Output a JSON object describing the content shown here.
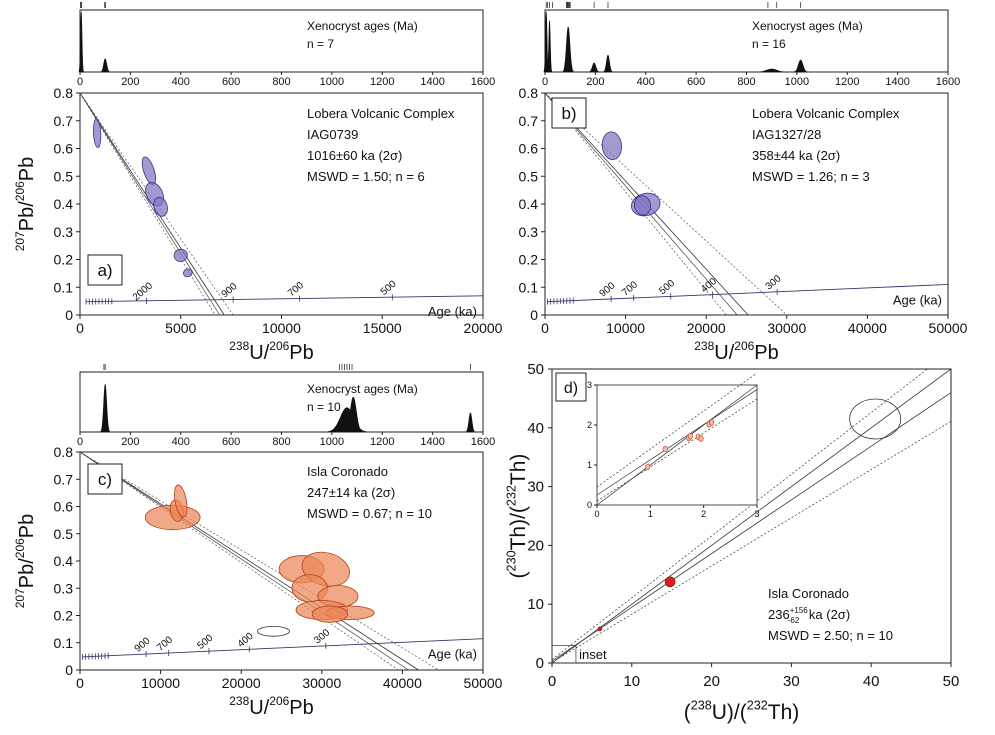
{
  "colors": {
    "purple_fill": "#8272c0",
    "purple_stroke": "#3e2f85",
    "orange_fill": "#ec8658",
    "orange_stroke": "#b5401c",
    "red_dot": "#d81e1e",
    "axis": "#222222",
    "concordia": "#33336e"
  },
  "chart_data": [
    {
      "panel": "a",
      "type": "scatter",
      "kind": "Tera-Wasserburg concordia",
      "label": "a)",
      "title_lines": [
        "Lobera Volcanic Complex",
        "IAG0739",
        "1016±60 ka (2σ)",
        "MSWD = 1.50; n = 6"
      ],
      "xlim": [
        0,
        20000
      ],
      "ylim": [
        0,
        0.8
      ],
      "x_ticks": [
        0,
        5000,
        10000,
        15000,
        20000
      ],
      "y_ticks": [
        0,
        0.1,
        0.2,
        0.3,
        0.4,
        0.5,
        0.6,
        0.7,
        0.8
      ],
      "x_tick_labels": [
        "0",
        "5000",
        "10000",
        "15000",
        "20000"
      ],
      "y_tick_labels": [
        "0",
        "0.1",
        "0.2",
        "0.3",
        "0.4",
        "0.5",
        "0.6",
        "0.7",
        "0.8"
      ],
      "ylabel": {
        "pre": "207",
        "mid": "Pb/",
        "sup": "206",
        "post": "Pb"
      },
      "xlabel": {
        "pre": "238",
        "mid": "U/",
        "sup": "206",
        "post": "Pb"
      },
      "concordia": {
        "label": "Age (ka)",
        "start": [
          300,
          0.048
        ],
        "end": [
          20000,
          0.069
        ],
        "age_labels": [
          "2000",
          "900",
          "700",
          "500"
        ],
        "age_label_x": [
          3300,
          7600,
          10900,
          15500
        ]
      },
      "regression": {
        "from": [
          0,
          0.8
        ],
        "center_x": 7160,
        "env_low_x": 6700,
        "env_high_x": 7600
      },
      "ellipses": [
        {
          "x": 850,
          "y": 0.655,
          "rx": 180,
          "ry": 0.052,
          "rot": 3
        },
        {
          "x": 3420,
          "y": 0.52,
          "rx": 260,
          "ry": 0.052,
          "rot": 18
        },
        {
          "x": 3700,
          "y": 0.435,
          "rx": 400,
          "ry": 0.045,
          "rot": 25
        },
        {
          "x": 4000,
          "y": 0.39,
          "rx": 330,
          "ry": 0.035,
          "rot": 15
        },
        {
          "x": 5000,
          "y": 0.215,
          "rx": 330,
          "ry": 0.022,
          "rot": 15
        },
        {
          "x": 5350,
          "y": 0.152,
          "rx": 220,
          "ry": 0.014,
          "rot": 20
        }
      ],
      "histogram": {
        "text_lines": [
          "Xenocryst ages (Ma)",
          "n = 7"
        ],
        "xlim": [
          0,
          1600
        ],
        "ticks": [
          0,
          200,
          400,
          600,
          800,
          1000,
          1200,
          1400,
          1600
        ],
        "tick_labels": [
          "0",
          "200",
          "400",
          "600",
          "800",
          "1000",
          "1200",
          "1400",
          "1600"
        ],
        "peaks": [
          {
            "center": 5,
            "height": 1.0,
            "width": 3
          },
          {
            "center": 100,
            "height": 0.22,
            "width": 6
          }
        ],
        "rug": [
          2,
          4,
          6,
          98,
          101
        ]
      }
    },
    {
      "panel": "b",
      "type": "scatter",
      "kind": "Tera-Wasserburg concordia",
      "label": "b)",
      "title_lines": [
        "Lobera Volcanic Complex",
        "IAG1327/28",
        "358±44 ka (2σ)",
        "MSWD = 1.26; n = 3"
      ],
      "xlim": [
        0,
        50000
      ],
      "ylim": [
        0,
        0.8
      ],
      "x_ticks": [
        0,
        10000,
        20000,
        30000,
        40000,
        50000
      ],
      "y_ticks": [
        0,
        0.1,
        0.2,
        0.3,
        0.4,
        0.5,
        0.6,
        0.7,
        0.8
      ],
      "x_tick_labels": [
        "0",
        "10000",
        "20000",
        "30000",
        "40000",
        "50000"
      ],
      "y_tick_labels": [
        "0",
        "0.1",
        "0.2",
        "0.3",
        "0.4",
        "0.5",
        "0.6",
        "0.7",
        "0.8"
      ],
      "ylabel": {
        "pre": "",
        "mid": "",
        "sup": "",
        "post": ""
      },
      "xlabel": {
        "pre": "238",
        "mid": "U/",
        "sup": "206",
        "post": "Pb"
      },
      "concordia": {
        "label": "Age (ka)",
        "start": [
          300,
          0.048
        ],
        "end": [
          50000,
          0.11
        ],
        "age_labels": [
          "900",
          "700",
          "500",
          "400",
          "300"
        ],
        "age_label_x": [
          8200,
          11000,
          15600,
          20800,
          28800
        ]
      },
      "regression": {
        "from": [
          0,
          0.8
        ],
        "center_x": 25200,
        "env_low_x": 22500,
        "env_high_x": 30000
      },
      "ellipses": [
        {
          "x": 8300,
          "y": 0.61,
          "rx": 1200,
          "ry": 0.05,
          "rot": 5
        },
        {
          "x": 12500,
          "y": 0.398,
          "rx": 1800,
          "ry": 0.04,
          "rot": 15
        },
        {
          "x": 12100,
          "y": 0.395,
          "rx": 1000,
          "ry": 0.035,
          "rot": 10
        }
      ],
      "histogram": {
        "text_lines": [
          "Xenocryst ages (Ma)",
          "n = 16"
        ],
        "xlim": [
          0,
          1600
        ],
        "ticks": [
          0,
          200,
          400,
          600,
          800,
          1000,
          1200,
          1400,
          1600
        ],
        "tick_labels": [
          "0",
          "200",
          "400",
          "600",
          "800",
          "1000",
          "1200",
          "1400",
          "1600"
        ],
        "peaks": [
          {
            "center": 5,
            "height": 1.0,
            "width": 3
          },
          {
            "center": 18,
            "height": 0.85,
            "width": 3
          },
          {
            "center": 92,
            "height": 0.75,
            "width": 7
          },
          {
            "center": 195,
            "height": 0.15,
            "width": 7
          },
          {
            "center": 250,
            "height": 0.28,
            "width": 6
          },
          {
            "center": 900,
            "height": 0.05,
            "width": 20
          },
          {
            "center": 1015,
            "height": 0.2,
            "width": 9
          }
        ],
        "rug": [
          5,
          10,
          18,
          30,
          85,
          88,
          91,
          94,
          97,
          100,
          195,
          250,
          885,
          920,
          1015
        ]
      }
    },
    {
      "panel": "c",
      "type": "scatter",
      "kind": "Tera-Wasserburg concordia",
      "label": "c)",
      "title_lines": [
        "Isla Coronado",
        "247±14 ka (2σ)",
        "MSWD = 0.67; n = 10"
      ],
      "xlim": [
        0,
        50000
      ],
      "ylim": [
        0,
        0.8
      ],
      "x_ticks": [
        0,
        10000,
        20000,
        30000,
        40000,
        50000
      ],
      "y_ticks": [
        0,
        0.1,
        0.2,
        0.3,
        0.4,
        0.5,
        0.6,
        0.7,
        0.8
      ],
      "x_tick_labels": [
        "0",
        "10000",
        "20000",
        "30000",
        "40000",
        "50000"
      ],
      "y_tick_labels": [
        "0",
        "0.1",
        "0.2",
        "0.3",
        "0.4",
        "0.5",
        "0.6",
        "0.7",
        "0.8"
      ],
      "ylabel": {
        "pre": "207",
        "mid": "Pb/",
        "sup": "206",
        "post": "Pb"
      },
      "xlabel": {
        "pre": "238",
        "mid": "U/",
        "sup": "206",
        "post": "Pb"
      },
      "concordia": {
        "label": "Age (ka)",
        "start": [
          300,
          0.048
        ],
        "end": [
          50000,
          0.115
        ],
        "age_labels": [
          "900",
          "700",
          "500",
          "400",
          "300"
        ],
        "age_label_x": [
          8200,
          11000,
          16000,
          21000,
          30500
        ]
      },
      "regression": {
        "from": [
          0,
          0.8
        ],
        "center_x": 42000,
        "env_low_x": 39500,
        "env_high_x": 44500
      },
      "ellipses": [
        {
          "x": 11500,
          "y": 0.56,
          "rx": 3400,
          "ry": 0.045,
          "rot": 0
        },
        {
          "x": 12000,
          "y": 0.585,
          "rx": 800,
          "ry": 0.04,
          "rot": 10
        },
        {
          "x": 12500,
          "y": 0.62,
          "rx": 700,
          "ry": 0.06,
          "rot": 10
        },
        {
          "x": 27500,
          "y": 0.37,
          "rx": 2800,
          "ry": 0.05,
          "rot": 0
        },
        {
          "x": 30500,
          "y": 0.37,
          "rx": 3000,
          "ry": 0.06,
          "rot": -15
        },
        {
          "x": 28500,
          "y": 0.3,
          "rx": 2200,
          "ry": 0.05,
          "rot": 0
        },
        {
          "x": 32000,
          "y": 0.27,
          "rx": 2500,
          "ry": 0.04,
          "rot": 0
        },
        {
          "x": 30000,
          "y": 0.22,
          "rx": 3200,
          "ry": 0.035,
          "rot": 0
        },
        {
          "x": 33500,
          "y": 0.21,
          "rx": 3000,
          "ry": 0.025,
          "rot": 0
        },
        {
          "x": 31000,
          "y": 0.205,
          "rx": 2200,
          "ry": 0.03,
          "rot": 0
        }
      ],
      "open_ellipse": {
        "x": 24000,
        "y": 0.142,
        "rx": 2000,
        "ry": 0.018
      },
      "histogram": {
        "text_lines": [
          "Xenocryst ages (Ma)",
          "n = 10"
        ],
        "xlim": [
          0,
          1600
        ],
        "ticks": [
          0,
          200,
          400,
          600,
          800,
          1000,
          1200,
          1400,
          1600
        ],
        "tick_labels": [
          "0",
          "200",
          "400",
          "600",
          "800",
          "1000",
          "1200",
          "1400",
          "1600"
        ],
        "peaks": [
          {
            "center": 100,
            "height": 0.82,
            "width": 6
          },
          {
            "center": 1060,
            "height": 0.42,
            "width": 26
          },
          {
            "center": 1085,
            "height": 0.6,
            "width": 12
          },
          {
            "center": 1550,
            "height": 0.33,
            "width": 6
          }
        ],
        "rug": [
          95,
          100,
          1030,
          1040,
          1050,
          1060,
          1070,
          1080,
          1550
        ]
      }
    },
    {
      "panel": "d",
      "type": "scatter",
      "kind": "U-Th isochron",
      "label": "d)",
      "title_lines": [
        "Isla Coronado"
      ],
      "age_main": "236",
      "age_sup": "+156",
      "age_sub": "-62",
      "age_tail": " ka (2σ)",
      "mswd_line": "MSWD = 2.50; n = 10",
      "xlim": [
        0,
        50
      ],
      "ylim": [
        0,
        50
      ],
      "x_ticks": [
        0,
        10,
        20,
        30,
        40,
        50
      ],
      "y_ticks": [
        0,
        10,
        20,
        30,
        40,
        50
      ],
      "x_tick_labels": [
        "0",
        "10",
        "20",
        "30",
        "40",
        "50"
      ],
      "y_tick_labels": [
        "0",
        "10",
        "20",
        "30",
        "40",
        "50"
      ],
      "ylabel": {
        "pre": "(",
        "sup": "230",
        "mid": "Th)/(",
        "sup2": "232",
        "post": "Th)"
      },
      "xlabel": {
        "pre": "(",
        "sup": "238",
        "mid": "U)/(",
        "sup2": "232",
        "post": "Th)"
      },
      "isochron": {
        "intercept": 0.35,
        "slope": 0.913,
        "env_low_slope": 0.82,
        "env_high_slope": 1.05,
        "equiline_slope": 1.0
      },
      "points": [
        {
          "x": 14.8,
          "y": 13.8,
          "big": true
        },
        {
          "x": 6.0,
          "y": 5.8,
          "big": false
        }
      ],
      "open_ellipse": {
        "x": 40.5,
        "y": 41.5,
        "rx": 3.2,
        "ry": 3.4
      },
      "inset_label": "inset",
      "inset": {
        "xlim": [
          0,
          3
        ],
        "ylim": [
          0,
          3
        ],
        "ticks": [
          0,
          1,
          2,
          3
        ],
        "tick_labels": [
          "0",
          "1",
          "2",
          "3"
        ],
        "points": [
          {
            "x": 1.28,
            "y": 1.4
          },
          {
            "x": 1.72,
            "y": 1.68
          },
          {
            "x": 1.75,
            "y": 1.72
          },
          {
            "x": 1.9,
            "y": 1.7
          },
          {
            "x": 1.95,
            "y": 1.66
          },
          {
            "x": 2.1,
            "y": 2.02
          },
          {
            "x": 2.15,
            "y": 2.06
          },
          {
            "x": 0.95,
            "y": 0.95
          }
        ]
      }
    }
  ]
}
